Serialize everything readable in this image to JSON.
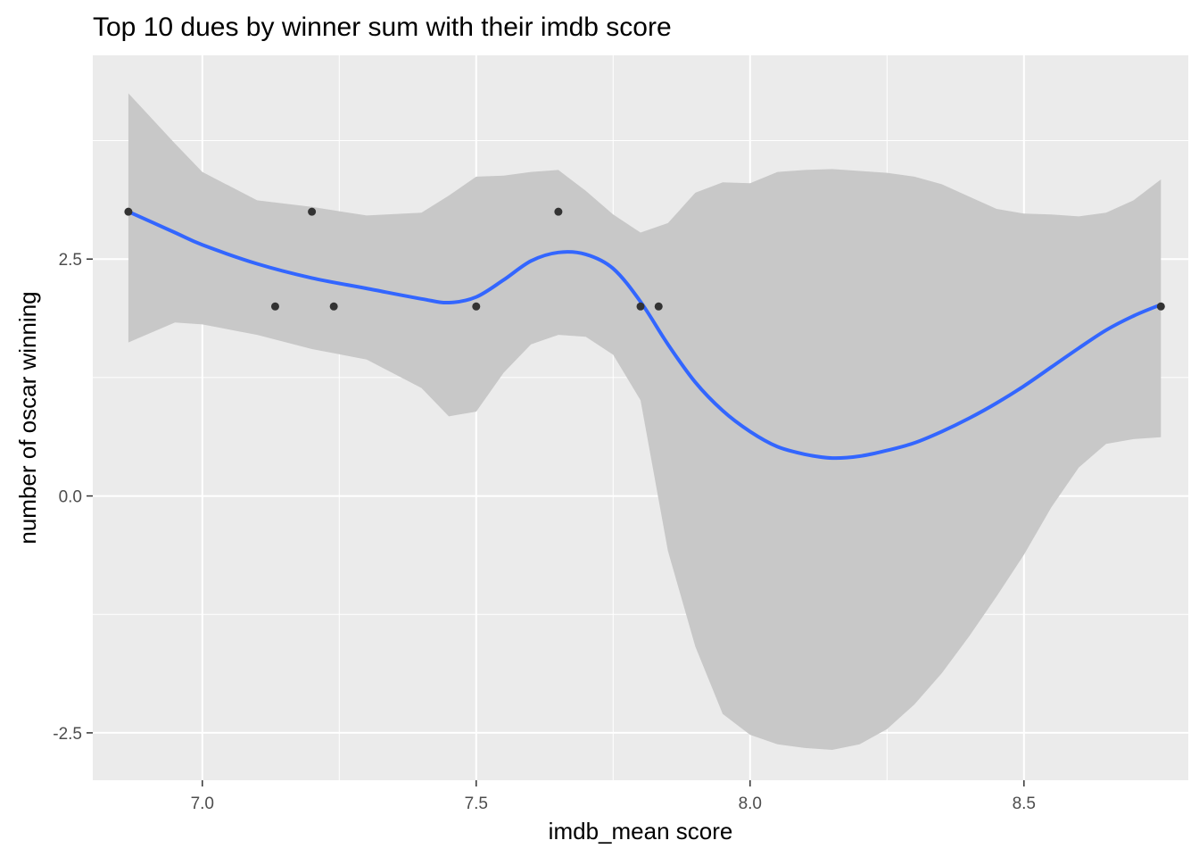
{
  "chart_data": {
    "type": "scatter",
    "title": "Top 10 dues by winner sum with their imdb score",
    "xlabel": "imdb_mean score",
    "ylabel": "number of oscar winning",
    "xlim": [
      6.8,
      8.8
    ],
    "ylim": [
      -3.0,
      4.65
    ],
    "x_ticks": [
      7.0,
      7.5,
      8.0,
      8.5
    ],
    "x_tick_labels": [
      "7.0",
      "7.5",
      "8.0",
      "8.5"
    ],
    "y_ticks": [
      -2.5,
      0.0,
      2.5
    ],
    "y_tick_labels": [
      "-2.5",
      "0.0",
      "2.5"
    ],
    "grid": true,
    "legend": "none",
    "colors": {
      "panel": "#ebebeb",
      "grid": "#ffffff",
      "points": "#333333",
      "smooth_line": "#3366ff",
      "confidence_band": "#c8c8c8"
    },
    "points": [
      {
        "x": 6.865,
        "y": 3
      },
      {
        "x": 7.133,
        "y": 2
      },
      {
        "x": 7.2,
        "y": 3
      },
      {
        "x": 7.24,
        "y": 2
      },
      {
        "x": 7.5,
        "y": 2
      },
      {
        "x": 7.65,
        "y": 3
      },
      {
        "x": 7.8,
        "y": 2
      },
      {
        "x": 7.833,
        "y": 2
      },
      {
        "x": 8.75,
        "y": 2
      }
    ],
    "smooth": {
      "method": "loess",
      "x": [
        6.865,
        6.95,
        7.0,
        7.1,
        7.2,
        7.3,
        7.4,
        7.45,
        7.5,
        7.55,
        7.6,
        7.65,
        7.7,
        7.75,
        7.8,
        7.85,
        7.9,
        7.95,
        8.0,
        8.05,
        8.1,
        8.15,
        8.2,
        8.25,
        8.3,
        8.35,
        8.4,
        8.45,
        8.5,
        8.55,
        8.6,
        8.65,
        8.7,
        8.75
      ],
      "y": [
        3.0,
        2.78,
        2.65,
        2.45,
        2.3,
        2.19,
        2.08,
        2.04,
        2.1,
        2.28,
        2.48,
        2.57,
        2.55,
        2.4,
        2.05,
        1.6,
        1.2,
        0.9,
        0.68,
        0.52,
        0.44,
        0.4,
        0.42,
        0.48,
        0.56,
        0.68,
        0.82,
        0.98,
        1.16,
        1.36,
        1.56,
        1.75,
        1.9,
        2.02
      ],
      "ci_upper": [
        4.25,
        3.72,
        3.42,
        3.12,
        3.05,
        2.96,
        2.99,
        3.17,
        3.37,
        3.38,
        3.42,
        3.44,
        3.22,
        2.97,
        2.78,
        2.88,
        3.2,
        3.31,
        3.3,
        3.42,
        3.44,
        3.45,
        3.43,
        3.41,
        3.37,
        3.29,
        3.16,
        3.03,
        2.98,
        2.97,
        2.95,
        2.99,
        3.12,
        3.34
      ],
      "ci_lower": [
        1.62,
        1.83,
        1.81,
        1.7,
        1.55,
        1.44,
        1.14,
        0.84,
        0.89,
        1.3,
        1.6,
        1.7,
        1.68,
        1.49,
        1.01,
        -0.58,
        -1.59,
        -2.3,
        -2.52,
        -2.62,
        -2.66,
        -2.68,
        -2.62,
        -2.46,
        -2.2,
        -1.87,
        -1.48,
        -1.06,
        -0.62,
        -0.12,
        0.3,
        0.55,
        0.6,
        0.62
      ]
    }
  }
}
